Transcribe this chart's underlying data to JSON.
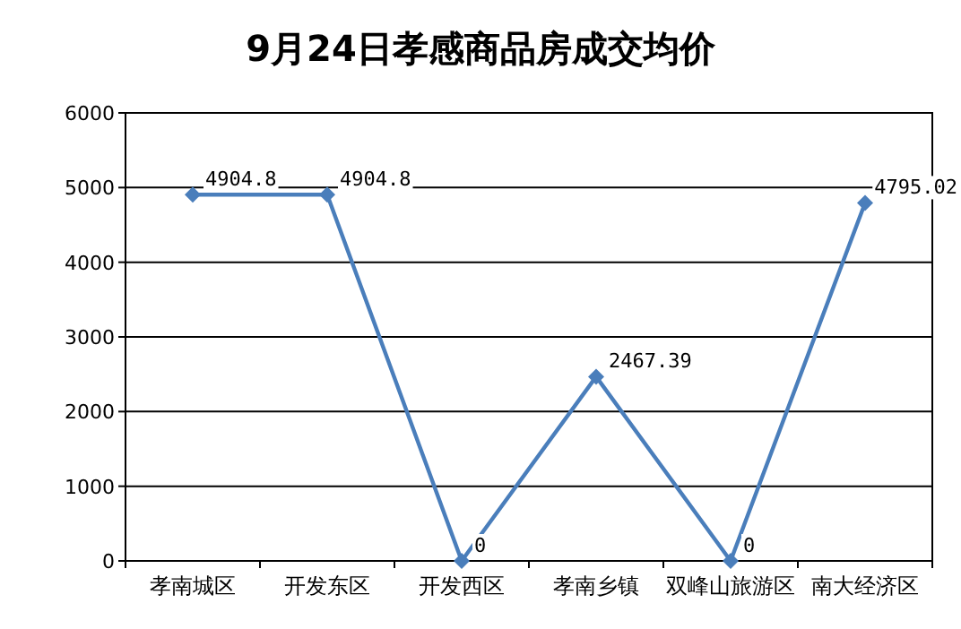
{
  "chart_data": {
    "type": "line",
    "title": "9月24日孝感商品房成交均价",
    "categories": [
      "孝南城区",
      "开发东区",
      "开发西区",
      "孝南乡镇",
      "双峰山旅游区",
      "南大经济区"
    ],
    "series": [
      {
        "color": "#4a7ebb",
        "values": [
          4904.8,
          4904.8,
          0,
          2467.39,
          0,
          4795.02
        ]
      }
    ],
    "ylim": [
      0,
      6000
    ],
    "yticks": [
      0,
      1000,
      2000,
      3000,
      4000,
      5000,
      6000
    ],
    "grid": "y",
    "marker": "diamond",
    "line_style": "solid",
    "data_labels": true
  }
}
